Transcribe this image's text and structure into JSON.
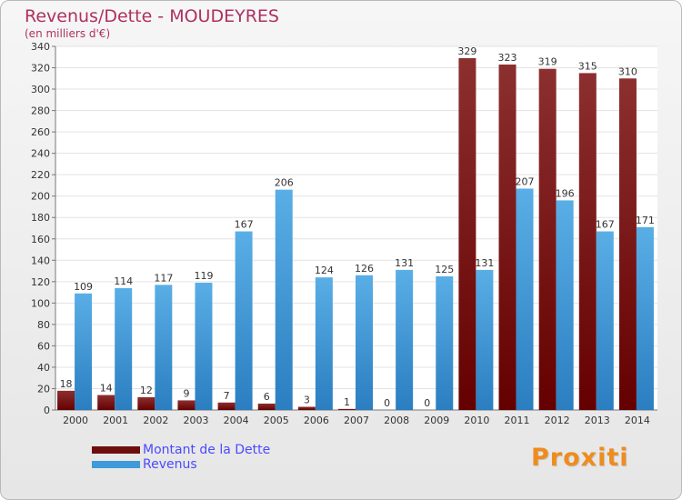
{
  "title": "Revenus/Dette - MOUDEYRES",
  "subtitle": "(en milliers d'€)",
  "colors": {
    "dette": "#7b1a1a",
    "revenus": "#3e9ad8",
    "title": "#b03060",
    "legend_text": "#4a4aff"
  },
  "legend": [
    {
      "label": "Montant de la Dette",
      "color": "#7b1a1a"
    },
    {
      "label": "Revenus",
      "color": "#3e9ad8"
    }
  ],
  "logo": {
    "text": "Proxiti"
  },
  "chart_data": {
    "type": "bar",
    "title": "Revenus/Dette - MOUDEYRES",
    "subtitle": "(en milliers d'€)",
    "categories": [
      "2000",
      "2001",
      "2002",
      "2003",
      "2004",
      "2005",
      "2006",
      "2007",
      "2008",
      "2009",
      "2010",
      "2011",
      "2012",
      "2013",
      "2014"
    ],
    "series": [
      {
        "name": "Montant de la Dette",
        "values": [
          18,
          14,
          12,
          9,
          7,
          6,
          3,
          1,
          0,
          0,
          329,
          323,
          319,
          315,
          310
        ]
      },
      {
        "name": "Revenus",
        "values": [
          109,
          114,
          117,
          119,
          167,
          206,
          124,
          126,
          131,
          125,
          131,
          207,
          196,
          167,
          171
        ]
      }
    ],
    "ylim": [
      0,
      340
    ],
    "yticks": [
      0,
      20,
      40,
      60,
      80,
      100,
      120,
      140,
      160,
      180,
      200,
      220,
      240,
      260,
      280,
      300,
      320,
      340
    ],
    "grid": true,
    "legend_position": "bottom-left"
  }
}
